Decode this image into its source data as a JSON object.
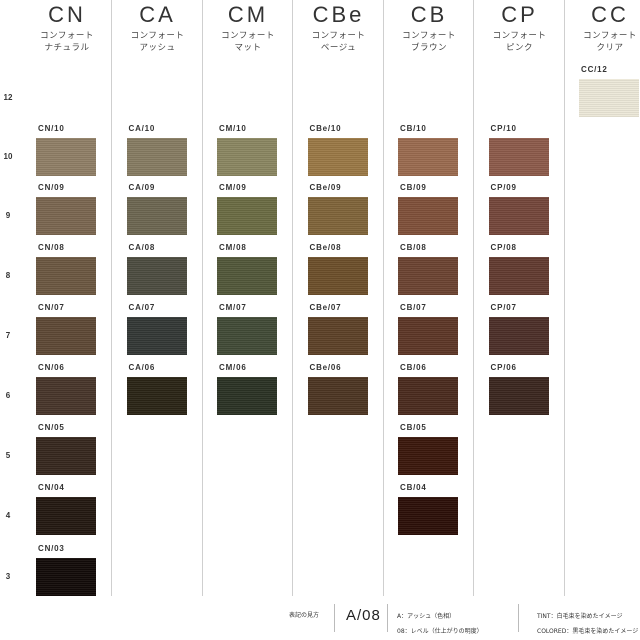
{
  "columns": [
    {
      "code": "CN",
      "name_lines": [
        "コンフォート",
        "ナチュラル"
      ]
    },
    {
      "code": "CA",
      "name_lines": [
        "コンフォート",
        "アッシュ"
      ]
    },
    {
      "code": "CM",
      "name_lines": [
        "コンフォート",
        "マット"
      ]
    },
    {
      "code": "CBe",
      "name_lines": [
        "コンフォート",
        "ベージュ"
      ]
    },
    {
      "code": "CB",
      "name_lines": [
        "コンフォート",
        "ブラウン"
      ]
    },
    {
      "code": "CP",
      "name_lines": [
        "コンフォート",
        "ピンク"
      ]
    },
    {
      "code": "CC",
      "name_lines": [
        "コンフォート",
        "クリア"
      ]
    }
  ],
  "levels": [
    "12",
    "10",
    "9",
    "8",
    "7",
    "6",
    "5",
    "4",
    "3"
  ],
  "swatches": [
    {
      "column": "CN",
      "level": "10",
      "label": "CN/10",
      "color": "#8f7e66"
    },
    {
      "column": "CN",
      "level": "9",
      "label": "CN/09",
      "color": "#7a6650"
    },
    {
      "column": "CN",
      "level": "8",
      "label": "CN/08",
      "color": "#6b5741"
    },
    {
      "column": "CN",
      "level": "7",
      "label": "CN/07",
      "color": "#5e4835"
    },
    {
      "column": "CN",
      "level": "6",
      "label": "CN/06",
      "color": "#47352a"
    },
    {
      "column": "CN",
      "level": "5",
      "label": "CN/05",
      "color": "#36271e"
    },
    {
      "column": "CN",
      "level": "4",
      "label": "CN/04",
      "color": "#231811"
    },
    {
      "column": "CN",
      "level": "3",
      "label": "CN/03",
      "color": "#120b08"
    },
    {
      "column": "CA",
      "level": "10",
      "label": "CA/10",
      "color": "#867b62"
    },
    {
      "column": "CA",
      "level": "9",
      "label": "CA/09",
      "color": "#6c6651"
    },
    {
      "column": "CA",
      "level": "8",
      "label": "CA/08",
      "color": "#4d4c40"
    },
    {
      "column": "CA",
      "level": "7",
      "label": "CA/07",
      "color": "#333735"
    },
    {
      "column": "CA",
      "level": "6",
      "label": "CA/06",
      "color": "#2a2415"
    },
    {
      "column": "CM",
      "level": "10",
      "label": "CM/10",
      "color": "#8a8661"
    },
    {
      "column": "CM",
      "level": "9",
      "label": "CM/09",
      "color": "#6a6b43"
    },
    {
      "column": "CM",
      "level": "8",
      "label": "CM/08",
      "color": "#525739"
    },
    {
      "column": "CM",
      "level": "7",
      "label": "CM/07",
      "color": "#414a36"
    },
    {
      "column": "CM",
      "level": "6",
      "label": "CM/06",
      "color": "#2b3224"
    },
    {
      "column": "CBe",
      "level": "10",
      "label": "CBe/10",
      "color": "#9a7845"
    },
    {
      "column": "CBe",
      "level": "9",
      "label": "CBe/09",
      "color": "#806439"
    },
    {
      "column": "CBe",
      "level": "8",
      "label": "CBe/08",
      "color": "#6c4f2a"
    },
    {
      "column": "CBe",
      "level": "7",
      "label": "CBe/07",
      "color": "#5c4127"
    },
    {
      "column": "CBe",
      "level": "6",
      "label": "CBe/06",
      "color": "#4d3522"
    },
    {
      "column": "CB",
      "level": "10",
      "label": "CB/10",
      "color": "#9a6a4f"
    },
    {
      "column": "CB",
      "level": "9",
      "label": "CB/09",
      "color": "#7f5039"
    },
    {
      "column": "CB",
      "level": "8",
      "label": "CB/08",
      "color": "#6b4331"
    },
    {
      "column": "CB",
      "level": "7",
      "label": "CB/07",
      "color": "#5c3626"
    },
    {
      "column": "CB",
      "level": "6",
      "label": "CB/06",
      "color": "#4a2b1e"
    },
    {
      "column": "CB",
      "level": "5",
      "label": "CB/05",
      "color": "#3a170c"
    },
    {
      "column": "CB",
      "level": "4",
      "label": "CB/04",
      "color": "#2c0f08"
    },
    {
      "column": "CP",
      "level": "10",
      "label": "CP/10",
      "color": "#8c5a4a"
    },
    {
      "column": "CP",
      "level": "9",
      "label": "CP/09",
      "color": "#74463a"
    },
    {
      "column": "CP",
      "level": "8",
      "label": "CP/08",
      "color": "#623a30"
    },
    {
      "column": "CP",
      "level": "7",
      "label": "CP/07",
      "color": "#4c2f28"
    },
    {
      "column": "CP",
      "level": "6",
      "label": "CP/06",
      "color": "#3a261f"
    },
    {
      "column": "CC",
      "level": "12",
      "label": "CC/12",
      "color": "#ece8d8"
    }
  ],
  "legend": {
    "how_to_read": "表記の見方",
    "example_code": "A/08",
    "line_a": "A：アッシュ（色相）",
    "line_08": "08：レベル（仕上がりの明度）",
    "tint": "TINT：白毛束を染めたイメージ",
    "colored": "COLORED：黒毛束を染めたイメージ"
  }
}
